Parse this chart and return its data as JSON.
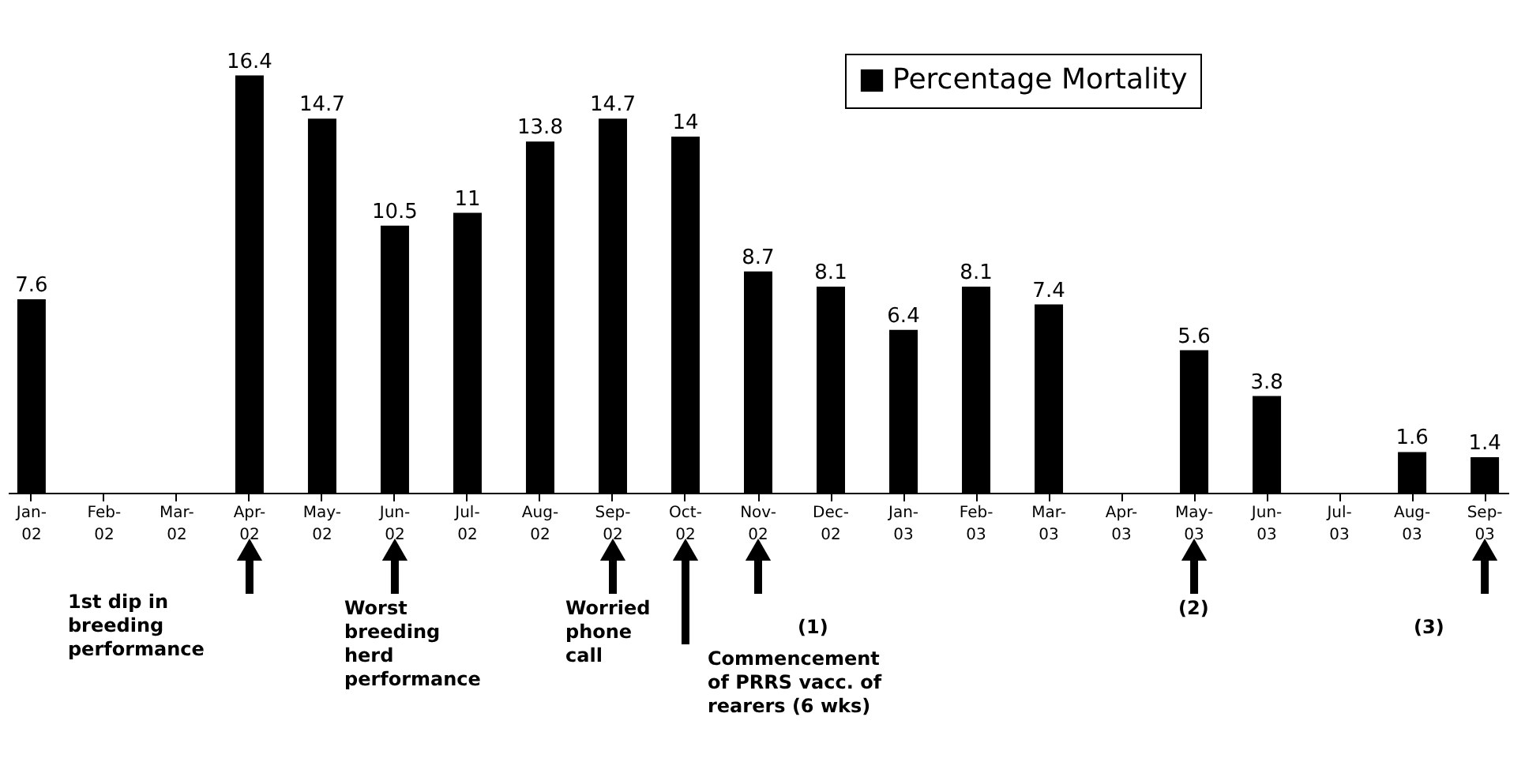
{
  "chart_data": {
    "type": "bar",
    "categories": [
      "Jan-02",
      "Feb-02",
      "Mar-02",
      "Apr-02",
      "May-02",
      "Jun-02",
      "Jul-02",
      "Aug-02",
      "Sep-02",
      "Oct-02",
      "Nov-02",
      "Dec-02",
      "Jan-03",
      "Feb-03",
      "Mar-03",
      "Apr-03",
      "May-03",
      "Jun-03",
      "Jul-03",
      "Aug-03",
      "Sep-03"
    ],
    "series": [
      {
        "name": "Percentage Mortality",
        "color": "#000000",
        "values": [
          7.6,
          null,
          null,
          16.4,
          14.7,
          10.5,
          11,
          13.8,
          14.7,
          14,
          8.7,
          8.1,
          6.4,
          8.1,
          7.4,
          null,
          5.6,
          3.8,
          null,
          1.6,
          1.4
        ]
      }
    ],
    "data_labels": true,
    "legend": "top right",
    "grid": false,
    "annotations": [
      "1st dip in\nbreeding\nperformance",
      "Worst\nbreeding\nherd\nperformance",
      "Worried\nphone\ncall",
      "Commencement\nof PRRS vacc. of\nrearers (6 wks)",
      "(1)",
      "(2)",
      "(3)"
    ]
  }
}
